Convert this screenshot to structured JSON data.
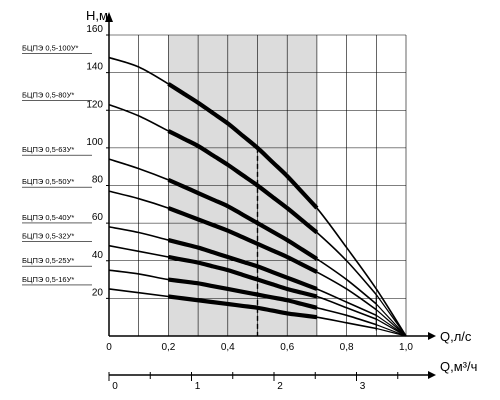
{
  "chart_data": {
    "type": "line",
    "ylabel": "H,м",
    "xlabel": "Q,л/с",
    "x2label": "Q,м³/ч",
    "ylim": [
      0,
      160
    ],
    "xlim": [
      0,
      1.0
    ],
    "x2lim": [
      0,
      3.6
    ],
    "yticks": [
      "20",
      "40",
      "60",
      "80",
      "100",
      "120",
      "140",
      "160"
    ],
    "xticks": [
      "0",
      "0,2",
      "0,4",
      "0,6",
      "0,8",
      "1,0"
    ],
    "x2ticks": [
      "0",
      "1",
      "2",
      "3"
    ],
    "grid": true,
    "working_range": [
      0.2,
      0.7
    ],
    "nominal_flow": 0.5,
    "series": [
      {
        "name": "БЦПЭ 0,5-100У*",
        "x": [
          0,
          0.1,
          0.2,
          0.3,
          0.4,
          0.5,
          0.6,
          0.7,
          0.8,
          0.9,
          1.0
        ],
        "values": [
          148,
          143,
          134,
          124,
          113,
          100,
          85,
          68,
          47,
          25,
          0
        ]
      },
      {
        "name": "БЦПЭ 0,5-80У*",
        "x": [
          0,
          0.1,
          0.2,
          0.3,
          0.4,
          0.5,
          0.6,
          0.7,
          0.8,
          0.9
        ],
        "values": [
          123,
          117,
          109,
          101,
          91,
          80,
          68,
          55,
          40,
          22
        ]
      },
      {
        "name": "БЦПЭ 0,5-63У*",
        "x": [
          0,
          0.1,
          0.2,
          0.3,
          0.4,
          0.5,
          0.6,
          0.7,
          0.8,
          0.9
        ],
        "values": [
          94,
          89,
          83,
          76,
          69,
          60,
          51,
          41,
          30,
          17
        ]
      },
      {
        "name": "БЦПЭ 0,5-50У*",
        "x": [
          0,
          0.1,
          0.2,
          0.3,
          0.4,
          0.5,
          0.6,
          0.7,
          0.8,
          0.9
        ],
        "values": [
          77,
          73,
          68,
          62,
          56,
          49,
          42,
          34,
          25,
          14
        ]
      },
      {
        "name": "БЦПЭ 0,5-40У*",
        "x": [
          0,
          0.1,
          0.2,
          0.3,
          0.4,
          0.5,
          0.6,
          0.7,
          0.8,
          0.9
        ],
        "values": [
          58,
          55,
          51,
          47,
          42,
          37,
          31,
          25,
          18,
          11
        ]
      },
      {
        "name": "БЦПЭ 0,5-32У*",
        "x": [
          0,
          0.1,
          0.2,
          0.3,
          0.4,
          0.5,
          0.6,
          0.7,
          0.8,
          0.9
        ],
        "values": [
          48,
          45,
          42,
          39,
          35,
          30,
          25,
          21,
          15,
          9
        ]
      },
      {
        "name": "БЦПЭ 0,5-25У*",
        "x": [
          0,
          0.1,
          0.2,
          0.3,
          0.4,
          0.5,
          0.6,
          0.7,
          0.8,
          0.9
        ],
        "values": [
          35,
          33,
          30,
          28,
          25,
          22,
          19,
          15,
          11,
          6
        ]
      },
      {
        "name": "БЦПЭ 0,5-16У*",
        "x": [
          0,
          0.1,
          0.2,
          0.3,
          0.4,
          0.5,
          0.6,
          0.7,
          0.8,
          0.9
        ],
        "values": [
          25,
          23,
          21,
          19,
          17,
          15,
          12,
          10,
          7,
          4
        ]
      }
    ]
  }
}
